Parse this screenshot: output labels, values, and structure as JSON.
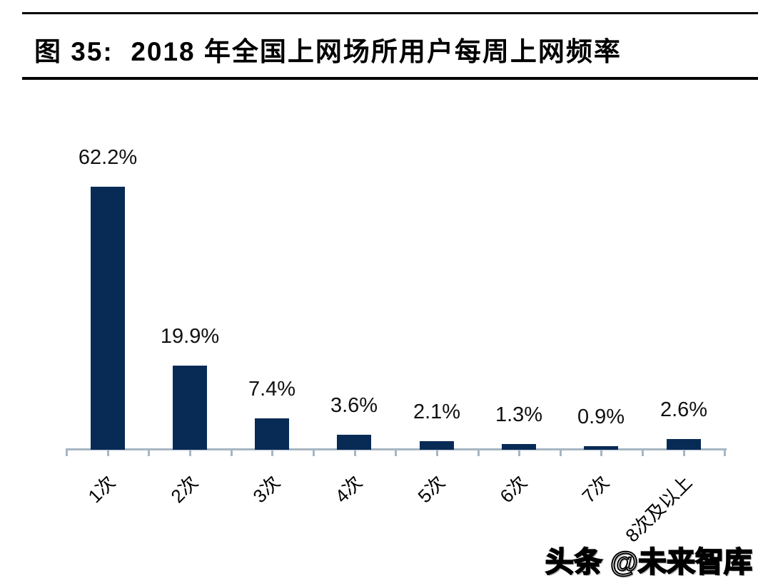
{
  "header": {
    "title": "图 35:  2018 年全国上网场所用户每周上网频率"
  },
  "chart_data": {
    "type": "bar",
    "title": "图 35:  2018 年全国上网场所用户每周上网频率",
    "categories": [
      "1次",
      "2次",
      "3次",
      "4次",
      "5次",
      "6次",
      "7次",
      "8次及以上"
    ],
    "values": [
      62.2,
      19.9,
      7.4,
      3.6,
      2.1,
      1.3,
      0.9,
      2.6
    ],
    "value_labels": [
      "62.2%",
      "19.9%",
      "7.4%",
      "3.6%",
      "2.1%",
      "1.3%",
      "0.9%",
      "2.6%"
    ],
    "xlabel": "",
    "ylabel": "",
    "ylim": [
      0,
      66
    ],
    "grid": false,
    "legend": false,
    "y_axis_visible": false,
    "x_label_rotation_deg": -45,
    "bar_color": "#082b55",
    "axis_color": "#a7b6c3",
    "value_label_color": "#111111"
  },
  "watermark": {
    "text": "头条 @未来智库"
  }
}
